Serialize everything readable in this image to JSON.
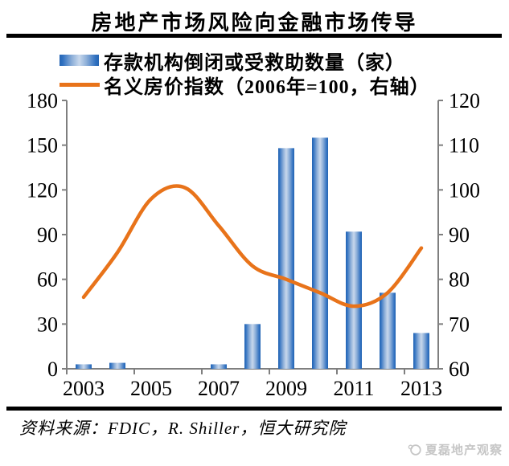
{
  "title": "房地产市场风险向金融市场传导",
  "legend": [
    {
      "label": "存款机构倒闭或受救助数量（家）",
      "swatch": "bar-gradient-blue"
    },
    {
      "label": "名义房价指数（2006年=100，右轴）",
      "swatch": "line-orange"
    }
  ],
  "colors": {
    "bar_edge": "#2565b2",
    "bar_mid": "#8fb0d9",
    "bar_light": "#c8d8ec",
    "line": "#e8731a",
    "axis": "#7f7f7f",
    "rule": "#000000",
    "watermark": "#c6c6c6"
  },
  "chart_data": {
    "type": "bar",
    "subtype": "bar+line dual axis",
    "categories": [
      "2003",
      "2004",
      "2005",
      "2006",
      "2007",
      "2008",
      "2009",
      "2010",
      "2011",
      "2012",
      "2013"
    ],
    "x_tick_labels": [
      "2003",
      "2005",
      "2007",
      "2009",
      "2011",
      "2013"
    ],
    "series": [
      {
        "name": "存款机构倒闭或受救助数量（家）",
        "type": "bar",
        "axis": "left",
        "values": [
          3,
          4,
          0,
          0,
          3,
          30,
          148,
          155,
          92,
          51,
          24
        ]
      },
      {
        "name": "名义房价指数（2006年=100，右轴）",
        "type": "line",
        "axis": "right",
        "smooth": true,
        "values": [
          76,
          86,
          98,
          100.5,
          92,
          83,
          80,
          77,
          74,
          77,
          87
        ]
      }
    ],
    "left_axis": {
      "min": 0,
      "max": 180,
      "ticks": [
        0,
        30,
        60,
        90,
        120,
        150,
        180
      ]
    },
    "right_axis": {
      "min": 60,
      "max": 120,
      "ticks": [
        60,
        70,
        80,
        90,
        100,
        110,
        120
      ]
    },
    "grid": false,
    "legend_position": "top-left"
  },
  "source": "资料来源：FDIC，R. Shiller，恒大研究院",
  "watermark": "夏磊地产观察"
}
